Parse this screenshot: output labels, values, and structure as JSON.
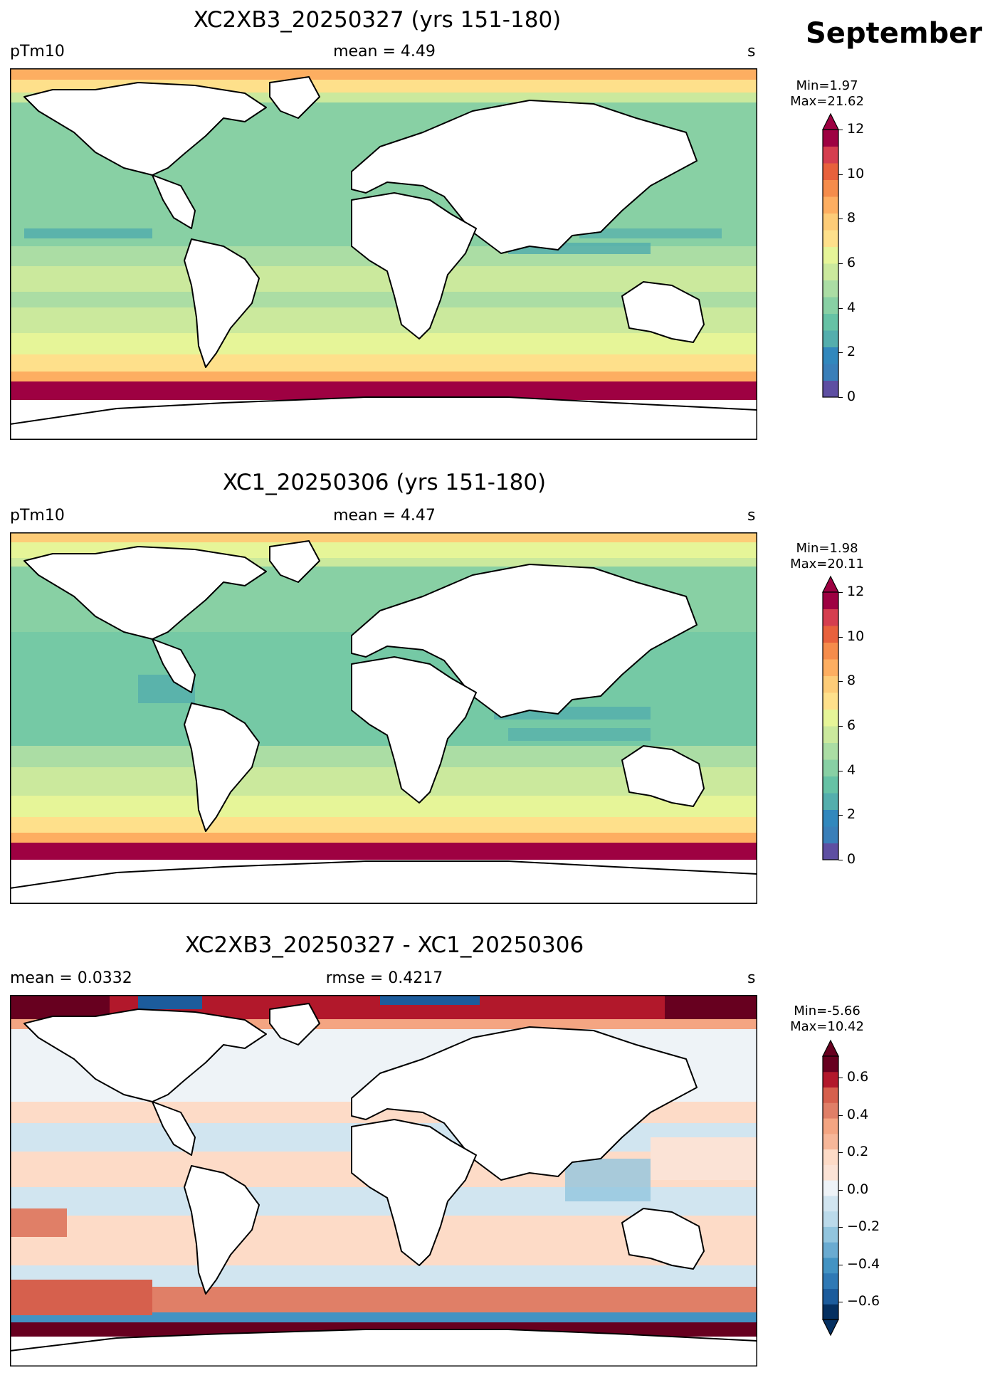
{
  "month": "September",
  "panels": [
    {
      "title": "XC2XB3_20250327 (yrs 151-180)",
      "left": "pTm10",
      "center": "mean = 4.49",
      "right": "s",
      "min_label": "Min=1.97",
      "max_label": "Max=21.62",
      "colorbar": {
        "ticks": [
          "0",
          "2",
          "4",
          "6",
          "8",
          "10",
          "12"
        ],
        "colors": [
          "#5e4fa2",
          "#3a7fb9",
          "#3288bd",
          "#54aead",
          "#66c2a5",
          "#88d0a4",
          "#abdda4",
          "#cbe99d",
          "#e6f598",
          "#fee08b",
          "#fdcc78",
          "#fdae61",
          "#f58c4b",
          "#e8613c",
          "#d53e4f",
          "#9e0142"
        ]
      }
    },
    {
      "title": "XC1_20250306 (yrs 151-180)",
      "left": "pTm10",
      "center": "mean = 4.47",
      "right": "s",
      "min_label": "Min=1.98",
      "max_label": "Max=20.11",
      "colorbar": {
        "ticks": [
          "0",
          "2",
          "4",
          "6",
          "8",
          "10",
          "12"
        ],
        "colors": [
          "#5e4fa2",
          "#3a7fb9",
          "#3288bd",
          "#54aead",
          "#66c2a5",
          "#88d0a4",
          "#abdda4",
          "#cbe99d",
          "#e6f598",
          "#fee08b",
          "#fdcc78",
          "#fdae61",
          "#f58c4b",
          "#e8613c",
          "#d53e4f",
          "#9e0142"
        ]
      }
    },
    {
      "title": "XC2XB3_20250327 - XC1_20250306",
      "left": "mean = 0.0332",
      "center": "rmse = 0.4217",
      "right": "s",
      "min_label": "Min=-5.66",
      "max_label": "Max=10.42",
      "colorbar": {
        "ticks": [
          "0.6",
          "0.4",
          "0.2",
          "0.0",
          "−0.2",
          "−0.4",
          "−0.6"
        ],
        "colors": [
          "#053061",
          "#1c5c9c",
          "#2f79b5",
          "#4393c3",
          "#6aabd1",
          "#92c5de",
          "#bbdaea",
          "#d1e5f0",
          "#eef3f7",
          "#fbe3d6",
          "#fddbc7",
          "#f7b799",
          "#f4a582",
          "#e07f67",
          "#d6604d",
          "#b2182b",
          "#67001f"
        ]
      }
    }
  ]
}
